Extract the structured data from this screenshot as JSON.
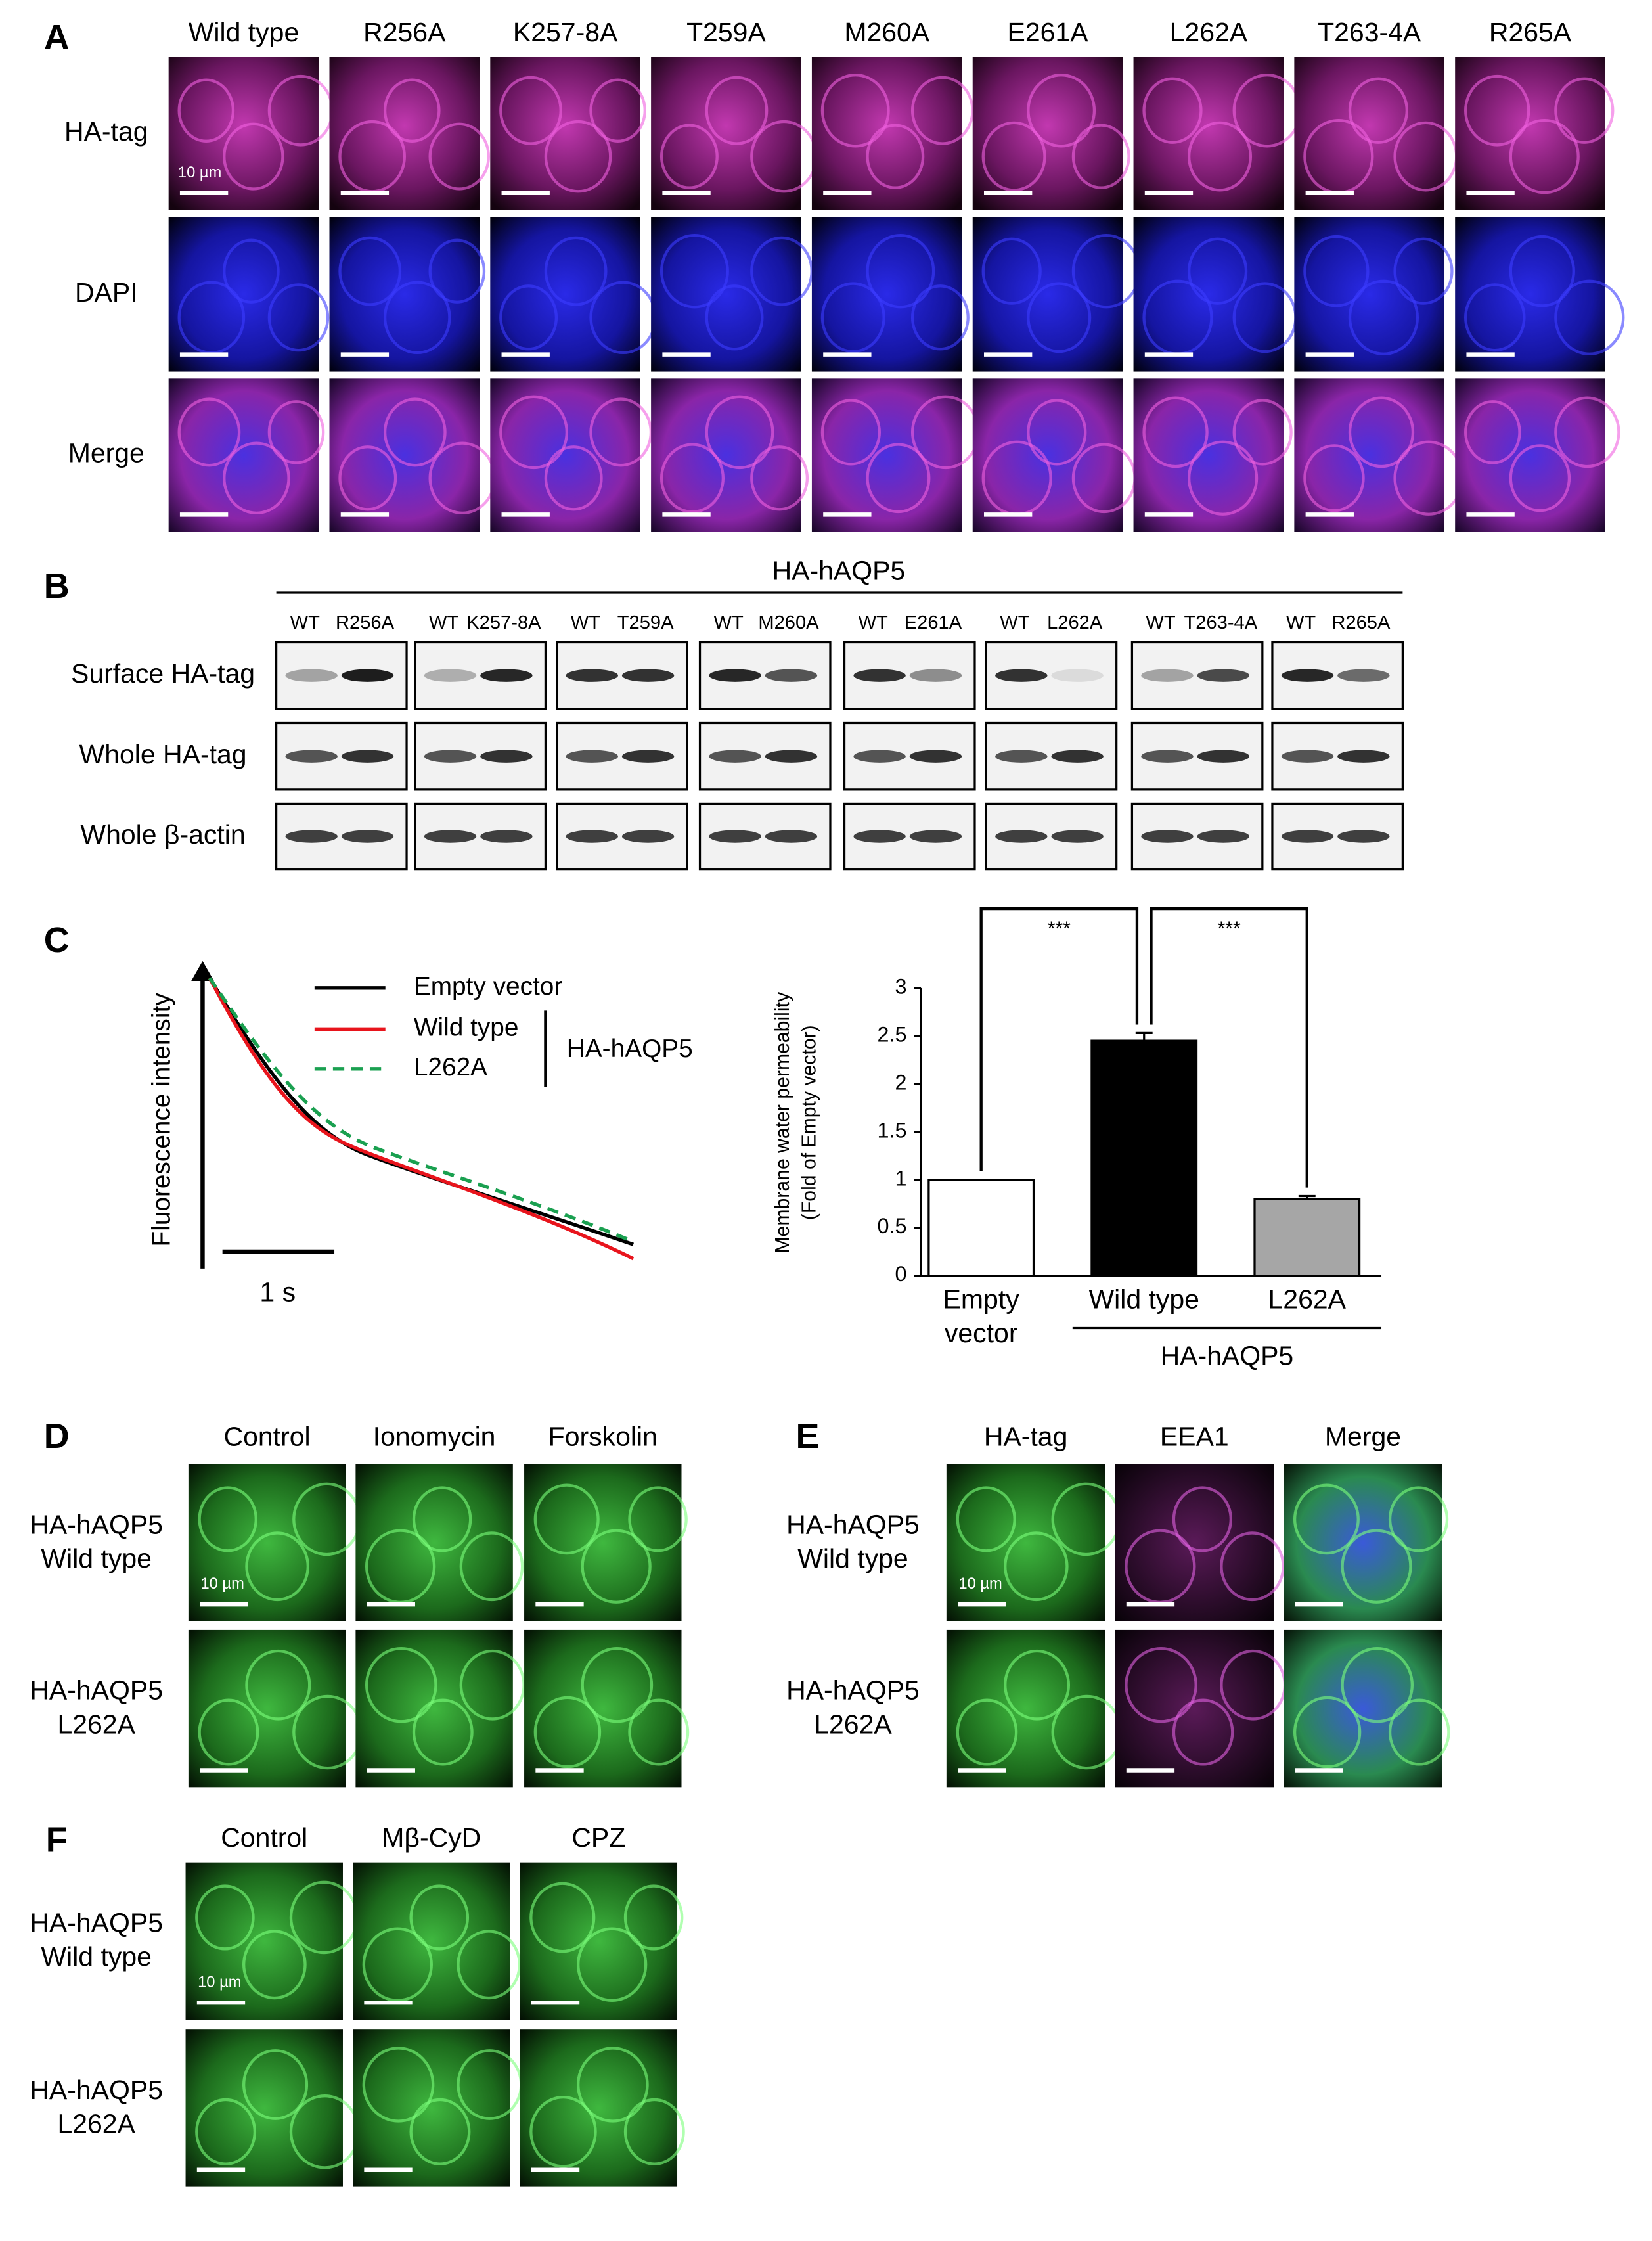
{
  "panel_labels": [
    "A",
    "B",
    "C",
    "D",
    "E",
    "F"
  ],
  "panel_a": {
    "columns": [
      "Wild type",
      "R256A",
      "K257-8A",
      "T259A",
      "M260A",
      "E261A",
      "L262A",
      "T263-4A",
      "R265A"
    ],
    "rows": [
      "HA-tag",
      "DAPI",
      "Merge"
    ],
    "scale_bar": "10 µm"
  },
  "panel_b": {
    "group": "HA-hAQP5",
    "lanes": [
      [
        "WT",
        "R256A"
      ],
      [
        "WT",
        "K257-8A"
      ],
      [
        "WT",
        "T259A"
      ],
      [
        "WT",
        "M260A"
      ],
      [
        "WT",
        "E261A"
      ],
      [
        "WT",
        "L262A"
      ],
      [
        "WT",
        "T263-4A"
      ],
      [
        "WT",
        "R265A"
      ]
    ],
    "rows": [
      "Surface HA-tag",
      "Whole HA-tag",
      "Whole β-actin"
    ]
  },
  "panel_c": {
    "y_label": "Fluorescence intensity",
    "time_scale": "1 s",
    "legend": [
      "Empty vector",
      "Wild type",
      "L262A"
    ],
    "legend_group": "HA-hAQP5"
  },
  "chart_data": {
    "type": "bar",
    "y_label": [
      "Membrane water permeability",
      "(Fold of Empty vector)"
    ],
    "categories": [
      "Empty vector",
      "Wild type",
      "L262A"
    ],
    "values": [
      1,
      2.45,
      0.8
    ],
    "errors": [
      0,
      0.08,
      0.03
    ],
    "colors": [
      "#ffffff",
      "#000000",
      "#a6a6a6"
    ],
    "ylim": [
      0,
      3
    ],
    "yticks": [
      0,
      0.5,
      1,
      1.5,
      2,
      2.5,
      3
    ],
    "group_label": "HA-hAQP5",
    "significance": [
      "***",
      "***"
    ]
  },
  "panel_d": {
    "columns": [
      "Control",
      "Ionomycin",
      "Forskolin"
    ],
    "rows": [
      [
        "HA-hAQP5",
        "Wild type"
      ],
      [
        "HA-hAQP5",
        "L262A"
      ]
    ],
    "scale_bar": "10 µm"
  },
  "panel_e": {
    "columns": [
      "HA-tag",
      "EEA1",
      "Merge"
    ],
    "rows": [
      [
        "HA-hAQP5",
        "Wild type"
      ],
      [
        "HA-hAQP5",
        "L262A"
      ]
    ],
    "scale_bar": "10 µm"
  },
  "panel_f": {
    "columns": [
      "Control",
      "Mβ-CyD",
      "CPZ"
    ],
    "rows": [
      [
        "HA-hAQP5",
        "Wild type"
      ],
      [
        "HA-hAQP5",
        "L262A"
      ]
    ],
    "scale_bar": "10 µm"
  }
}
